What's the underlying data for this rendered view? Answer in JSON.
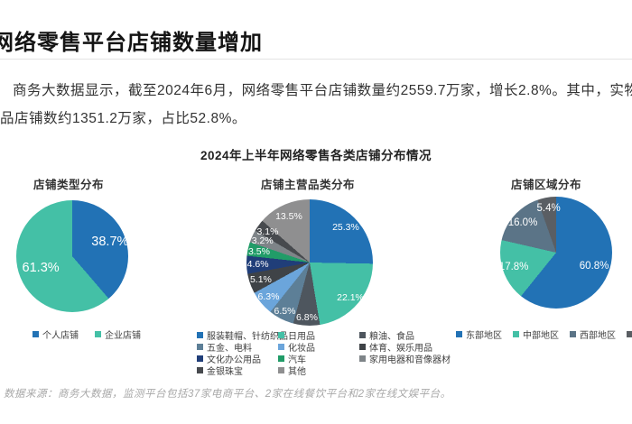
{
  "header": {
    "title": "网络零售平台店铺数量增加"
  },
  "body": {
    "line1": "商务大数据显示，截至2024年6月，网络零售平台店铺数量约2559.7万家，增长2.8%。其中，实物商",
    "line2": "品店铺数约1351.2万家，占比52.8%。"
  },
  "chart_header": {
    "title": "2024年上半年网络零售各类店铺分布情况"
  },
  "footer": {
    "text": "数据来源：商务大数据，监测平台包括37家电商平台、2家在线餐饮平台和2家在线文娱平台。"
  },
  "chart_data": [
    {
      "type": "pie",
      "title": "店铺类型分布",
      "legend_position": "bottom",
      "slices": [
        {
          "label": "个人店铺",
          "value": 38.7,
          "pct": "38.7%",
          "color": "#2272b5"
        },
        {
          "label": "企业店铺",
          "value": 61.3,
          "pct": "61.3%",
          "color": "#44c0a6"
        }
      ]
    },
    {
      "type": "pie",
      "title": "店铺主营品类分布",
      "legend_position": "bottom",
      "slices": [
        {
          "label": "服装鞋帽、针纺织品",
          "value": 25.3,
          "pct": "25.3%",
          "color": "#2272b5"
        },
        {
          "label": "日用品",
          "value": 22.1,
          "pct": "22.1%",
          "color": "#44c0a6"
        },
        {
          "label": "粮油、食品",
          "value": 6.8,
          "pct": "6.8%",
          "color": "#4e565e"
        },
        {
          "label": "五金、电料",
          "value": 6.5,
          "pct": "6.5%",
          "color": "#5d7f97"
        },
        {
          "label": "化妆品",
          "value": 6.3,
          "pct": "6.3%",
          "color": "#6ba5db"
        },
        {
          "label": "体育、娱乐用品",
          "value": 5.1,
          "pct": "5.1%",
          "color": "#3f4347"
        },
        {
          "label": "文化办公用品",
          "value": 4.6,
          "pct": "4.6%",
          "color": "#203e79"
        },
        {
          "label": "汽车",
          "value": 3.5,
          "pct": "3.5%",
          "color": "#219c68"
        },
        {
          "label": "家用电器和音像器材",
          "value": 3.2,
          "pct": "3.2%",
          "color": "#7e8488"
        },
        {
          "label": "金银珠宝",
          "value": 3.1,
          "pct": "3.1%",
          "color": "#474a4e"
        },
        {
          "label": "其他",
          "value": 13.5,
          "pct": "13.5%",
          "color": "#8f8f90"
        }
      ]
    },
    {
      "type": "pie",
      "title": "店铺区域分布",
      "legend_position": "bottom",
      "slices": [
        {
          "label": "东部地区",
          "value": 60.8,
          "pct": "60.8%",
          "color": "#2272b5"
        },
        {
          "label": "中部地区",
          "value": 17.8,
          "pct": "17.8%",
          "color": "#44c0a6"
        },
        {
          "label": "西部地区",
          "value": 16.0,
          "pct": "16.0%",
          "color": "#5b7487"
        },
        {
          "label": "东北地区",
          "value": 5.4,
          "pct": "5.4%",
          "color": "#5a5e63"
        }
      ]
    }
  ]
}
